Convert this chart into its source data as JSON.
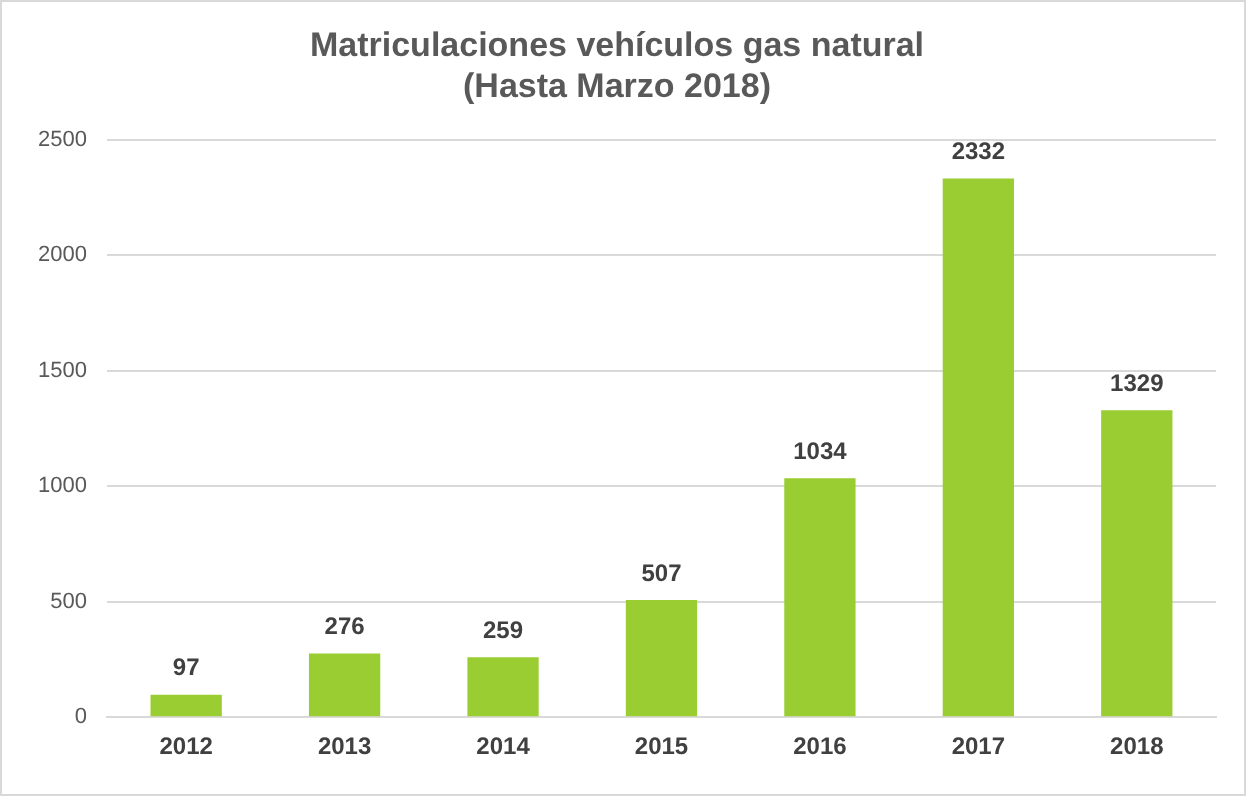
{
  "chart_data": {
    "type": "bar",
    "title": "Matriculaciones vehículos gas natural\n(Hasta Marzo 2018)",
    "categories": [
      "2012",
      "2013",
      "2014",
      "2015",
      "2016",
      "2017",
      "2018"
    ],
    "values": [
      97,
      276,
      259,
      507,
      1034,
      2332,
      1329
    ],
    "color": "#9acd32",
    "ylim": [
      0,
      2500
    ],
    "yticks": [
      0,
      500,
      1000,
      1500,
      2000,
      2500
    ],
    "grid": "y",
    "data_labels": true
  }
}
